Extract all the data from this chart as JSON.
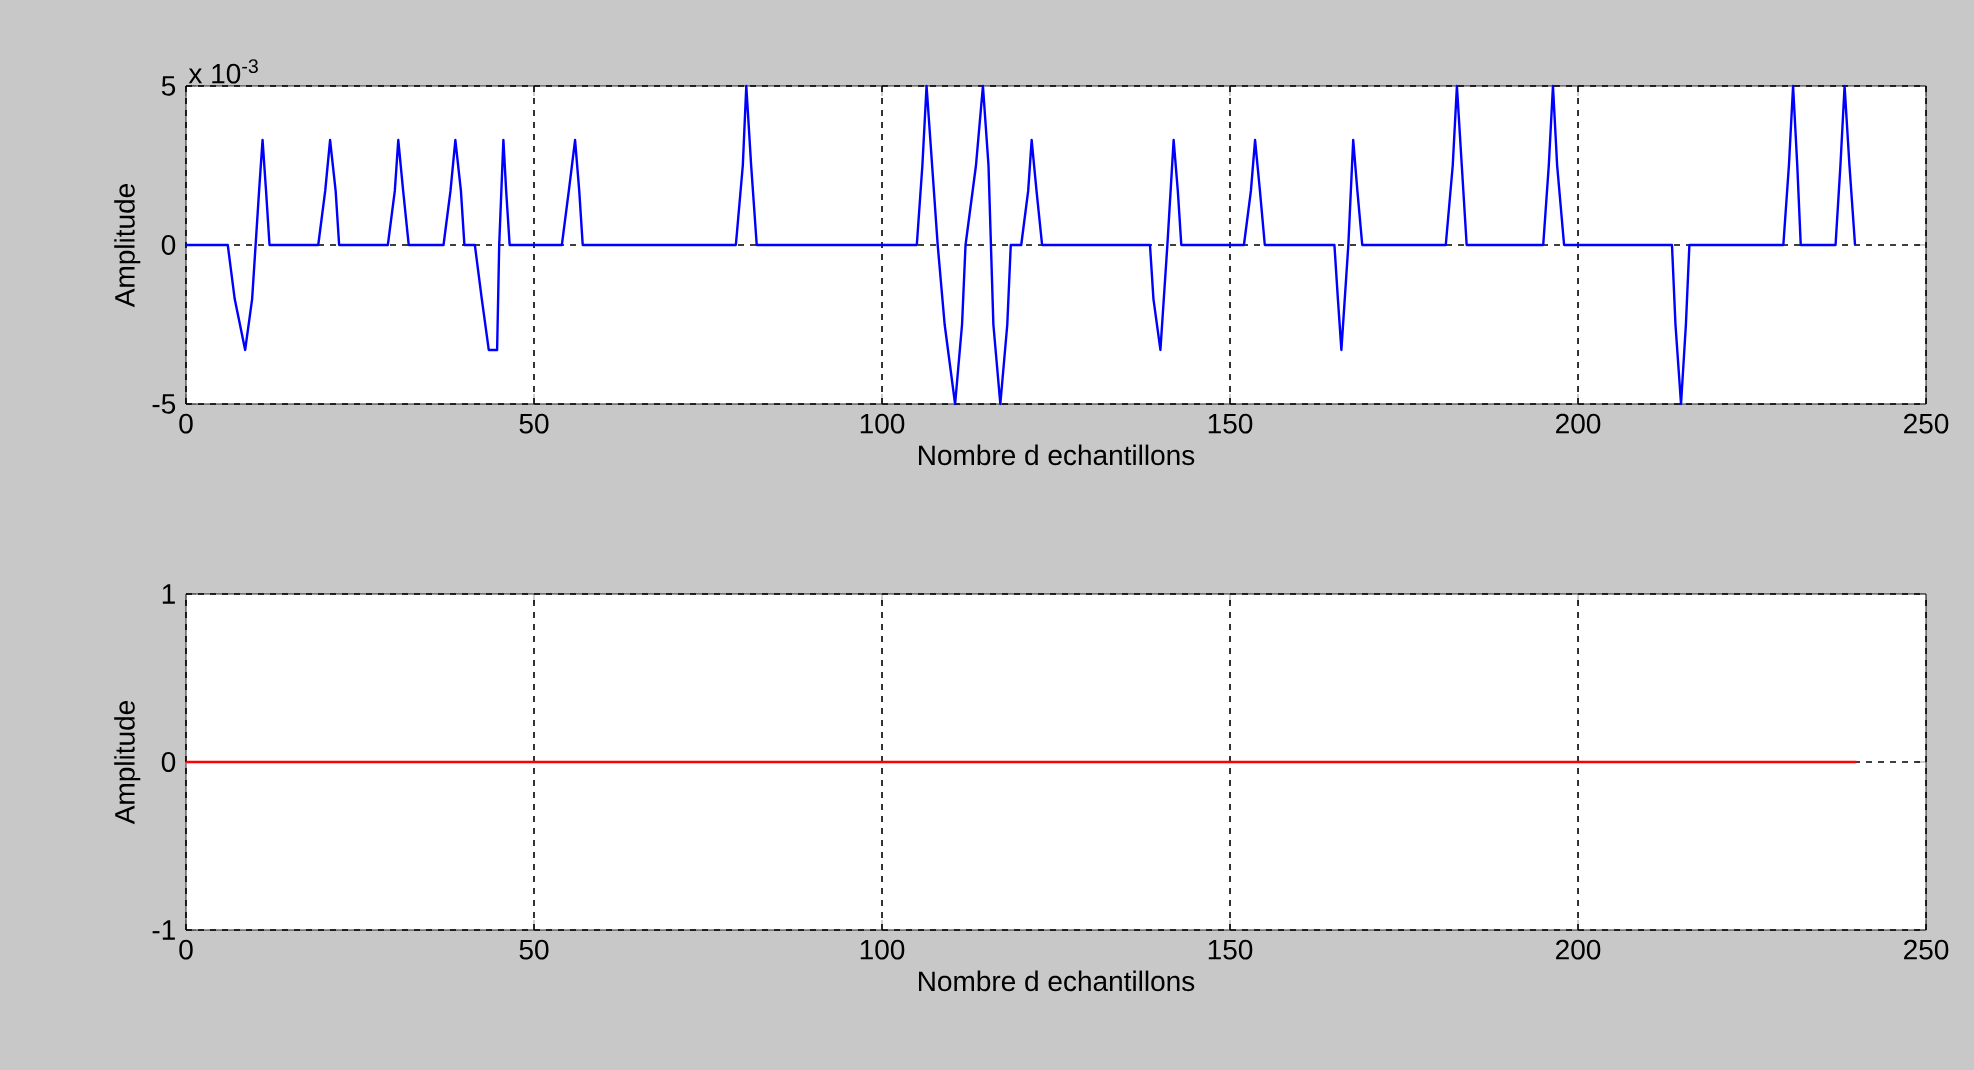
{
  "chart_data": [
    {
      "type": "line",
      "xlabel": "Nombre d echantillons",
      "ylabel": "Amplitude",
      "annotations": [
        "x 10$^{-3}$"
      ],
      "grid": true,
      "xlim": [
        0,
        250
      ],
      "ylim": [
        -5,
        5
      ],
      "xticks": [
        0,
        50,
        100,
        150,
        200,
        250
      ],
      "yticks": [
        -5,
        0,
        5
      ],
      "x": [
        0,
        6,
        7,
        8.5,
        9.5,
        10,
        10.5,
        11,
        11.5,
        12,
        19,
        20,
        20.7,
        21.5,
        22,
        29,
        30,
        30.5,
        31.2,
        32,
        37,
        38,
        38.7,
        39.5,
        40,
        41.5,
        42.5,
        43.5,
        44.7,
        45,
        45.6,
        46,
        46.5,
        54,
        55,
        55.9,
        56.5,
        57,
        79,
        80,
        80.5,
        81.2,
        82,
        105,
        105.8,
        106.4,
        107.2,
        108,
        109,
        110.5,
        111.5,
        112,
        113.5,
        114.5,
        115.3,
        116,
        117,
        118,
        118.5,
        120,
        121,
        121.5,
        122.2,
        123,
        138.5,
        139,
        140,
        141,
        141.9,
        142.5,
        143,
        152,
        153,
        153.6,
        154.3,
        155,
        165,
        165.5,
        166,
        167,
        167.7,
        168.3,
        169,
        181,
        182,
        182.6,
        183.3,
        184,
        195,
        195.8,
        196.4,
        197,
        198,
        213.5,
        214,
        214.8,
        215.5,
        216,
        229.5,
        230.3,
        230.9,
        231.5,
        232,
        237,
        237.7,
        238.3,
        239,
        239.8
      ],
      "series": [
        {
          "color": "#0000ff",
          "values": [
            0,
            0,
            -1.7,
            -3.3,
            -1.7,
            0,
            1.7,
            3.3,
            1.7,
            0,
            0,
            1.7,
            3.3,
            1.7,
            0,
            0,
            1.7,
            3.3,
            1.7,
            0,
            0,
            1.7,
            3.3,
            1.7,
            0,
            0,
            -1.7,
            -3.3,
            -3.3,
            0,
            3.3,
            1.7,
            0,
            0,
            1.7,
            3.3,
            1.7,
            0,
            0,
            2.5,
            5,
            2.5,
            0,
            0,
            2.5,
            5,
            2.5,
            0,
            -2.5,
            -5,
            -2.5,
            0,
            2.5,
            5,
            2.5,
            -2.5,
            -5,
            -2.5,
            0,
            0,
            1.7,
            3.3,
            1.7,
            0,
            0,
            -1.7,
            -3.3,
            0,
            3.3,
            1.7,
            0,
            0,
            1.7,
            3.3,
            1.7,
            0,
            0,
            -1.7,
            -3.3,
            0,
            3.3,
            1.7,
            0,
            0,
            2.5,
            5,
            2.5,
            0,
            0,
            2.5,
            5,
            2.5,
            0,
            0,
            -2.5,
            -5,
            -2.5,
            0,
            0,
            2.5,
            5,
            2.5,
            0,
            0,
            2.5,
            5,
            2.5,
            0
          ]
        }
      ]
    },
    {
      "type": "line",
      "xlabel": "Nombre d echantillons",
      "ylabel": "Amplitude",
      "grid": true,
      "xlim": [
        0,
        250
      ],
      "ylim": [
        -1,
        1
      ],
      "xticks": [
        0,
        50,
        100,
        150,
        200,
        250
      ],
      "yticks": [
        -1,
        0,
        1
      ],
      "x": [
        0,
        240
      ],
      "series": [
        {
          "color": "#ff0000",
          "values": [
            0,
            0
          ]
        }
      ]
    }
  ]
}
